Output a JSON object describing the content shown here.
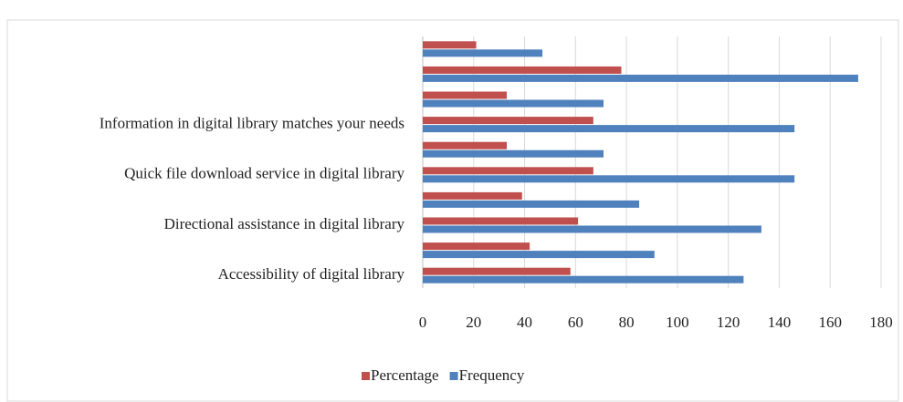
{
  "chart_data": {
    "type": "bar",
    "orientation": "horizontal",
    "categories": [
      "Accessibility of digital library",
      null,
      "Directional assistance in digital library",
      null,
      "Quick file download service in digital library",
      null,
      "Information in digital library matches your needs",
      null,
      null,
      null
    ],
    "series": [
      {
        "name": "Percentage",
        "color": "#c0504d",
        "values": [
          58,
          42,
          61,
          39,
          67,
          33,
          67,
          33,
          78,
          21
        ]
      },
      {
        "name": "Frequency",
        "color": "#4f81bd",
        "values": [
          126,
          91,
          133,
          85,
          146,
          71,
          146,
          71,
          171,
          47
        ]
      }
    ],
    "xlim": [
      0,
      180
    ],
    "xticks": [
      0,
      20,
      40,
      60,
      80,
      100,
      120,
      140,
      160,
      180
    ],
    "grid": true,
    "legend": "bottom"
  }
}
